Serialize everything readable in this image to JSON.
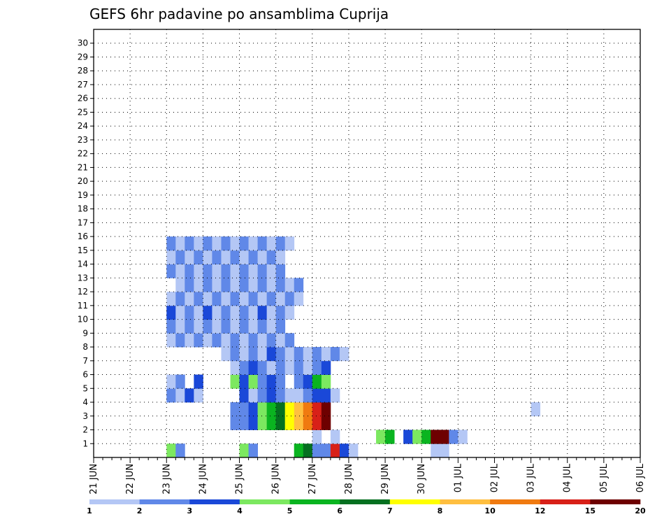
{
  "chart_data": {
    "type": "heatmap",
    "title": "GEFS 6hr padavine po ansamblima Cuprija",
    "xlabel": "",
    "ylabel": "",
    "x_ticks": [
      "21 JUN",
      "22 JUN",
      "23 JUN",
      "24 JUN",
      "25 JUN",
      "26 JUN",
      "27 JUN",
      "28 JUN",
      "29 JUN",
      "30 JUN",
      "01 JUL",
      "02 JUL",
      "03 JUL",
      "04 JUL",
      "05 JUL",
      "06 JUL"
    ],
    "y_ticks": [
      "1",
      "2",
      "3",
      "4",
      "5",
      "6",
      "7",
      "8",
      "9",
      "10",
      "11",
      "12",
      "13",
      "14",
      "15",
      "16",
      "17",
      "18",
      "19",
      "20",
      "21",
      "22",
      "23",
      "24",
      "25",
      "26",
      "27",
      "28",
      "29",
      "30"
    ],
    "time_steps_per_day": 4,
    "colorbar": {
      "labels": [
        "1",
        "2",
        "3",
        "4",
        "5",
        "6",
        "7",
        "8",
        "10",
        "12",
        "15",
        "20"
      ],
      "colors": [
        "#b4c7f5",
        "#6088e8",
        "#1a48d8",
        "#7ce860",
        "#0ab420",
        "#057020",
        "#ffff00",
        "#ffbf40",
        "#f07a10",
        "#d82018",
        "#6e0000"
      ]
    },
    "cells": [
      [
        0,
        8,
        3
      ],
      [
        0,
        9,
        1
      ],
      [
        0,
        16,
        3
      ],
      [
        0,
        17,
        1
      ],
      [
        0,
        22,
        4
      ],
      [
        0,
        23,
        5
      ],
      [
        0,
        24,
        1
      ],
      [
        0,
        25,
        1
      ],
      [
        0,
        26,
        9
      ],
      [
        0,
        27,
        2
      ],
      [
        0,
        28,
        0
      ],
      [
        0,
        37,
        0
      ],
      [
        0,
        38,
        0
      ],
      [
        1,
        24,
        0
      ],
      [
        1,
        26,
        0
      ],
      [
        1,
        31,
        3
      ],
      [
        1,
        32,
        4
      ],
      [
        1,
        34,
        2
      ],
      [
        1,
        35,
        3
      ],
      [
        1,
        36,
        4
      ],
      [
        1,
        37,
        10
      ],
      [
        1,
        38,
        10
      ],
      [
        1,
        39,
        1
      ],
      [
        1,
        40,
        0
      ],
      [
        2,
        15,
        1
      ],
      [
        2,
        16,
        1
      ],
      [
        2,
        17,
        2
      ],
      [
        2,
        18,
        3
      ],
      [
        2,
        19,
        4
      ],
      [
        2,
        20,
        5
      ],
      [
        2,
        21,
        6
      ],
      [
        2,
        22,
        7
      ],
      [
        2,
        23,
        8
      ],
      [
        2,
        24,
        9
      ],
      [
        2,
        25,
        10
      ],
      [
        3,
        15,
        1
      ],
      [
        3,
        16,
        1
      ],
      [
        3,
        17,
        2
      ],
      [
        3,
        18,
        3
      ],
      [
        3,
        19,
        4
      ],
      [
        3,
        20,
        5
      ],
      [
        3,
        21,
        6
      ],
      [
        3,
        22,
        7
      ],
      [
        3,
        23,
        8
      ],
      [
        3,
        24,
        9
      ],
      [
        3,
        25,
        10
      ],
      [
        3,
        48,
        0
      ],
      [
        4,
        8,
        1
      ],
      [
        4,
        9,
        0
      ],
      [
        4,
        10,
        2
      ],
      [
        4,
        11,
        0
      ],
      [
        4,
        16,
        2
      ],
      [
        4,
        17,
        0
      ],
      [
        4,
        18,
        1
      ],
      [
        4,
        19,
        2
      ],
      [
        4,
        20,
        1
      ],
      [
        4,
        21,
        0
      ],
      [
        4,
        22,
        0
      ],
      [
        4,
        23,
        1
      ],
      [
        4,
        24,
        2
      ],
      [
        4,
        25,
        2
      ],
      [
        4,
        26,
        0
      ],
      [
        5,
        8,
        0
      ],
      [
        5,
        9,
        1
      ],
      [
        5,
        11,
        2
      ],
      [
        5,
        15,
        3
      ],
      [
        5,
        16,
        2
      ],
      [
        5,
        17,
        3
      ],
      [
        5,
        18,
        1
      ],
      [
        5,
        19,
        2
      ],
      [
        5,
        20,
        1
      ],
      [
        5,
        22,
        1
      ],
      [
        5,
        23,
        2
      ],
      [
        5,
        24,
        4
      ],
      [
        5,
        25,
        3
      ],
      [
        6,
        15,
        0
      ],
      [
        6,
        16,
        1
      ],
      [
        6,
        17,
        2
      ],
      [
        6,
        18,
        1
      ],
      [
        6,
        19,
        0
      ],
      [
        6,
        20,
        1
      ],
      [
        6,
        21,
        0
      ],
      [
        6,
        22,
        1
      ],
      [
        6,
        23,
        0
      ],
      [
        6,
        24,
        1
      ],
      [
        6,
        25,
        2
      ],
      [
        7,
        14,
        0
      ],
      [
        7,
        15,
        1
      ],
      [
        7,
        16,
        0
      ],
      [
        7,
        17,
        1
      ],
      [
        7,
        18,
        0
      ],
      [
        7,
        19,
        2
      ],
      [
        7,
        20,
        1
      ],
      [
        7,
        21,
        0
      ],
      [
        7,
        22,
        1
      ],
      [
        7,
        23,
        0
      ],
      [
        7,
        24,
        1
      ],
      [
        7,
        25,
        0
      ],
      [
        7,
        26,
        1
      ],
      [
        7,
        27,
        0
      ],
      [
        8,
        8,
        0
      ],
      [
        8,
        9,
        1
      ],
      [
        8,
        10,
        0
      ],
      [
        8,
        11,
        1
      ],
      [
        8,
        12,
        0
      ],
      [
        8,
        13,
        1
      ],
      [
        8,
        14,
        0
      ],
      [
        8,
        15,
        1
      ],
      [
        8,
        16,
        0
      ],
      [
        8,
        17,
        1
      ],
      [
        8,
        18,
        0
      ],
      [
        8,
        19,
        1
      ],
      [
        8,
        20,
        0
      ],
      [
        8,
        21,
        1
      ],
      [
        9,
        8,
        1
      ],
      [
        9,
        9,
        0
      ],
      [
        9,
        10,
        1
      ],
      [
        9,
        11,
        0
      ],
      [
        9,
        12,
        1
      ],
      [
        9,
        13,
        0
      ],
      [
        9,
        14,
        1
      ],
      [
        9,
        15,
        0
      ],
      [
        9,
        16,
        1
      ],
      [
        9,
        17,
        0
      ],
      [
        9,
        18,
        1
      ],
      [
        9,
        19,
        0
      ],
      [
        9,
        20,
        1
      ],
      [
        10,
        8,
        2
      ],
      [
        10,
        9,
        0
      ],
      [
        10,
        10,
        1
      ],
      [
        10,
        11,
        0
      ],
      [
        10,
        12,
        2
      ],
      [
        10,
        13,
        0
      ],
      [
        10,
        14,
        1
      ],
      [
        10,
        15,
        0
      ],
      [
        10,
        16,
        1
      ],
      [
        10,
        17,
        0
      ],
      [
        10,
        18,
        2
      ],
      [
        10,
        19,
        0
      ],
      [
        10,
        20,
        1
      ],
      [
        10,
        21,
        0
      ],
      [
        11,
        8,
        0
      ],
      [
        11,
        9,
        1
      ],
      [
        11,
        10,
        0
      ],
      [
        11,
        11,
        1
      ],
      [
        11,
        12,
        0
      ],
      [
        11,
        13,
        1
      ],
      [
        11,
        14,
        0
      ],
      [
        11,
        15,
        1
      ],
      [
        11,
        16,
        0
      ],
      [
        11,
        17,
        1
      ],
      [
        11,
        18,
        0
      ],
      [
        11,
        19,
        1
      ],
      [
        11,
        20,
        0
      ],
      [
        11,
        21,
        1
      ],
      [
        11,
        22,
        0
      ],
      [
        12,
        9,
        0
      ],
      [
        12,
        10,
        1
      ],
      [
        12,
        11,
        0
      ],
      [
        12,
        12,
        1
      ],
      [
        12,
        13,
        0
      ],
      [
        12,
        14,
        1
      ],
      [
        12,
        15,
        0
      ],
      [
        12,
        16,
        1
      ],
      [
        12,
        17,
        0
      ],
      [
        12,
        18,
        1
      ],
      [
        12,
        19,
        0
      ],
      [
        12,
        20,
        1
      ],
      [
        12,
        21,
        0
      ],
      [
        12,
        22,
        1
      ],
      [
        13,
        8,
        1
      ],
      [
        13,
        9,
        0
      ],
      [
        13,
        10,
        1
      ],
      [
        13,
        11,
        0
      ],
      [
        13,
        12,
        1
      ],
      [
        13,
        13,
        0
      ],
      [
        13,
        14,
        1
      ],
      [
        13,
        15,
        0
      ],
      [
        13,
        16,
        1
      ],
      [
        13,
        17,
        0
      ],
      [
        13,
        18,
        1
      ],
      [
        13,
        19,
        0
      ],
      [
        13,
        20,
        1
      ],
      [
        14,
        8,
        0
      ],
      [
        14,
        9,
        1
      ],
      [
        14,
        10,
        0
      ],
      [
        14,
        11,
        1
      ],
      [
        14,
        12,
        0
      ],
      [
        14,
        13,
        1
      ],
      [
        14,
        14,
        0
      ],
      [
        14,
        15,
        1
      ],
      [
        14,
        16,
        0
      ],
      [
        14,
        17,
        1
      ],
      [
        14,
        18,
        0
      ],
      [
        14,
        19,
        1
      ],
      [
        14,
        20,
        0
      ],
      [
        15,
        8,
        1
      ],
      [
        15,
        9,
        0
      ],
      [
        15,
        10,
        1
      ],
      [
        15,
        11,
        0
      ],
      [
        15,
        12,
        1
      ],
      [
        15,
        13,
        0
      ],
      [
        15,
        14,
        1
      ],
      [
        15,
        15,
        0
      ],
      [
        15,
        16,
        1
      ],
      [
        15,
        17,
        0
      ],
      [
        15,
        18,
        1
      ],
      [
        15,
        19,
        0
      ],
      [
        15,
        20,
        1
      ],
      [
        15,
        21,
        0
      ]
    ]
  }
}
